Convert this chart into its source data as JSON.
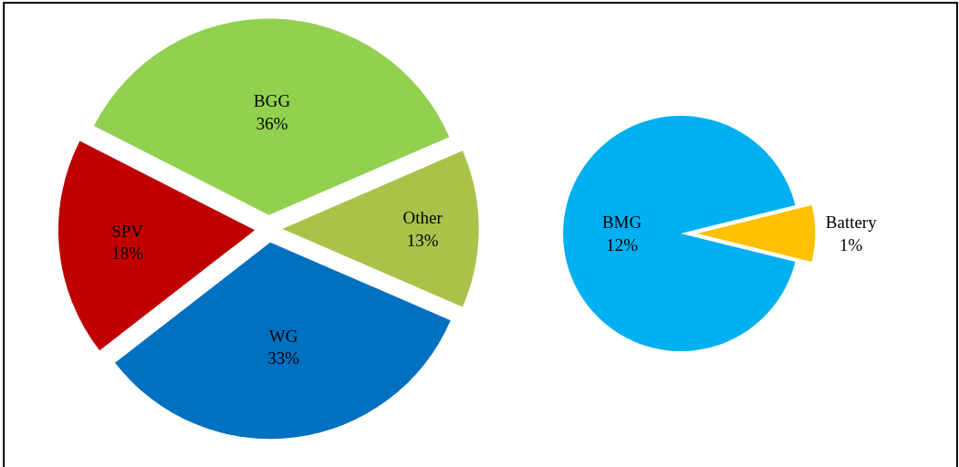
{
  "chart_data": [
    {
      "type": "pie",
      "categories": [
        "BGG",
        "Other",
        "WG",
        "SPV"
      ],
      "values": [
        36,
        13,
        33,
        18
      ],
      "value_labels": [
        "36%",
        "13%",
        "33%",
        "18%"
      ],
      "colors": [
        "#92d050",
        "#a9c24a",
        "#0070c0",
        "#c00000"
      ],
      "legend": false
    },
    {
      "type": "pie",
      "categories": [
        "BMG",
        "Battery"
      ],
      "values": [
        12,
        1
      ],
      "value_labels": [
        "12%",
        "1%"
      ],
      "colors": [
        "#00b0f0",
        "#ffc000"
      ],
      "legend": false
    }
  ]
}
